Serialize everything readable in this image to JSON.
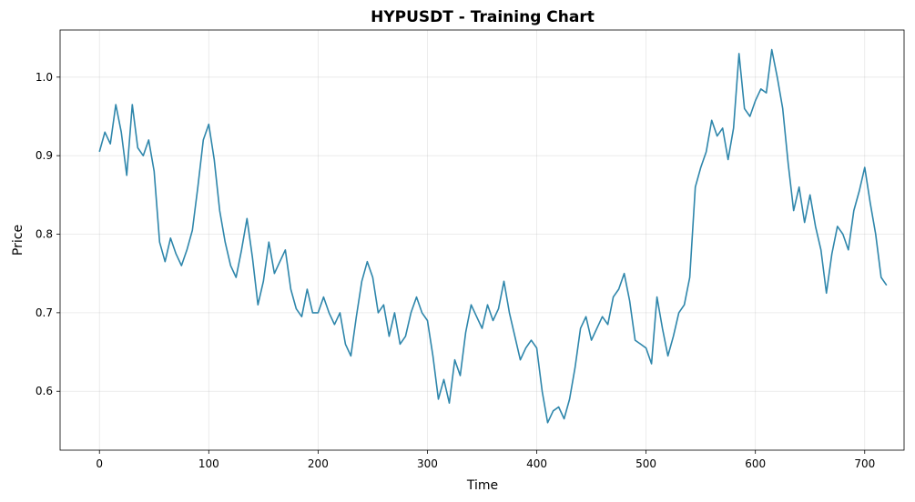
{
  "chart_data": {
    "type": "line",
    "title": "HYPUSDT - Training Chart",
    "xlabel": "Time",
    "ylabel": "Price",
    "xlim": [
      -36,
      736
    ],
    "ylim": [
      0.525,
      1.06
    ],
    "x_ticks": [
      0,
      100,
      200,
      300,
      400,
      500,
      600,
      700
    ],
    "y_ticks": [
      0.6,
      0.7,
      0.8,
      0.9,
      1.0
    ],
    "y_tick_labels": [
      "0.6",
      "0.7",
      "0.8",
      "0.9",
      "1.0"
    ],
    "grid": true,
    "color": "#2e86ab",
    "series": [
      {
        "x": [
          0,
          5,
          10,
          15,
          20,
          25,
          30,
          35,
          40,
          45,
          50,
          55,
          60,
          65,
          70,
          75,
          80,
          85,
          90,
          95,
          100,
          105,
          110,
          115,
          120,
          125,
          130,
          135,
          140,
          145,
          150,
          155,
          160,
          165,
          170,
          175,
          180,
          185,
          190,
          195,
          200,
          205,
          210,
          215,
          220,
          225,
          230,
          235,
          240,
          245,
          250,
          255,
          260,
          265,
          270,
          275,
          280,
          285,
          290,
          295,
          300,
          305,
          310,
          315,
          320,
          325,
          330,
          335,
          340,
          345,
          350,
          355,
          360,
          365,
          370,
          375,
          380,
          385,
          390,
          395,
          400,
          405,
          410,
          415,
          420,
          425,
          430,
          435,
          440,
          445,
          450,
          455,
          460,
          465,
          470,
          475,
          480,
          485,
          490,
          495,
          500,
          505,
          510,
          515,
          520,
          525,
          530,
          535,
          540,
          545,
          550,
          555,
          560,
          565,
          570,
          575,
          580,
          585,
          590,
          595,
          600,
          605,
          610,
          615,
          620,
          625,
          630,
          635,
          640,
          645,
          650,
          655,
          660,
          665,
          670,
          675,
          680,
          685,
          690,
          695,
          700,
          705,
          710,
          715,
          720
        ],
        "values": [
          0.905,
          0.93,
          0.915,
          0.965,
          0.93,
          0.875,
          0.965,
          0.91,
          0.9,
          0.92,
          0.88,
          0.79,
          0.765,
          0.795,
          0.775,
          0.76,
          0.78,
          0.805,
          0.86,
          0.92,
          0.94,
          0.895,
          0.83,
          0.79,
          0.76,
          0.745,
          0.78,
          0.82,
          0.77,
          0.71,
          0.74,
          0.79,
          0.75,
          0.765,
          0.78,
          0.73,
          0.705,
          0.695,
          0.73,
          0.7,
          0.7,
          0.72,
          0.7,
          0.685,
          0.7,
          0.66,
          0.645,
          0.695,
          0.74,
          0.765,
          0.745,
          0.7,
          0.71,
          0.67,
          0.7,
          0.66,
          0.67,
          0.7,
          0.72,
          0.7,
          0.69,
          0.645,
          0.59,
          0.615,
          0.585,
          0.64,
          0.62,
          0.675,
          0.71,
          0.695,
          0.68,
          0.71,
          0.69,
          0.705,
          0.74,
          0.7,
          0.67,
          0.64,
          0.655,
          0.665,
          0.655,
          0.6,
          0.56,
          0.575,
          0.58,
          0.565,
          0.59,
          0.63,
          0.68,
          0.695,
          0.665,
          0.68,
          0.695,
          0.685,
          0.72,
          0.73,
          0.75,
          0.715,
          0.665,
          0.66,
          0.655,
          0.635,
          0.72,
          0.68,
          0.645,
          0.67,
          0.7,
          0.71,
          0.745,
          0.86,
          0.885,
          0.905,
          0.945,
          0.925,
          0.935,
          0.895,
          0.935,
          1.03,
          0.96,
          0.95,
          0.97,
          0.985,
          0.98,
          1.035,
          1.0,
          0.96,
          0.89,
          0.83,
          0.86,
          0.815,
          0.85,
          0.81,
          0.78,
          0.725,
          0.775,
          0.81,
          0.8,
          0.78,
          0.83,
          0.855,
          0.885,
          0.84,
          0.8,
          0.745,
          0.735
        ]
      }
    ]
  }
}
